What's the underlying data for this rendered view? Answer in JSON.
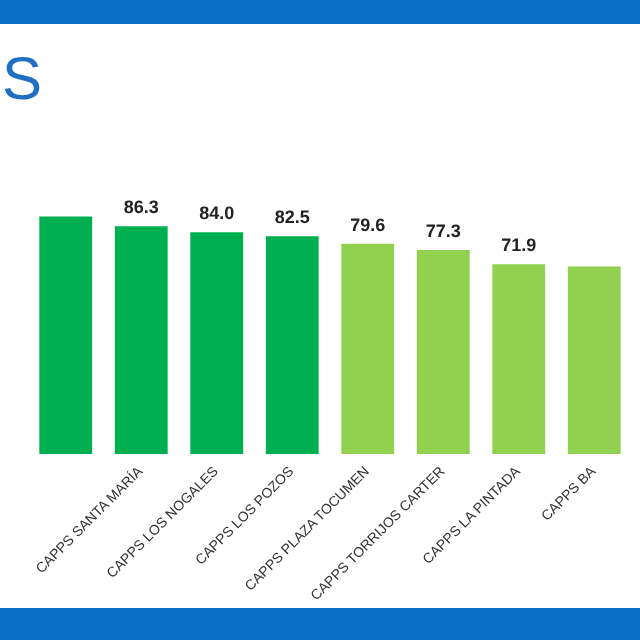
{
  "chart_data": {
    "type": "bar",
    "title": "S",
    "categories": [
      null,
      "CAPPS SANTA MARÍA",
      "CAPPS LOS NOGALES",
      "CAPPS LOS POZOS",
      "CAPPS PLAZA TOCUMEN",
      "CAPPS TORRIJOS CARTER",
      "CAPPS LA PINTADA",
      "CAPPS BA"
    ],
    "values": [
      90,
      86.3,
      84.0,
      82.5,
      79.6,
      77.3,
      71.9,
      71
    ],
    "value_labels": [
      null,
      "86.3",
      "84.0",
      "82.5",
      "79.6",
      "77.3",
      "71.9",
      null
    ],
    "colors": [
      "#00b050",
      "#00b050",
      "#00b050",
      "#00b050",
      "#92d050",
      "#92d050",
      "#92d050",
      "#92d050"
    ],
    "grid": false
  }
}
